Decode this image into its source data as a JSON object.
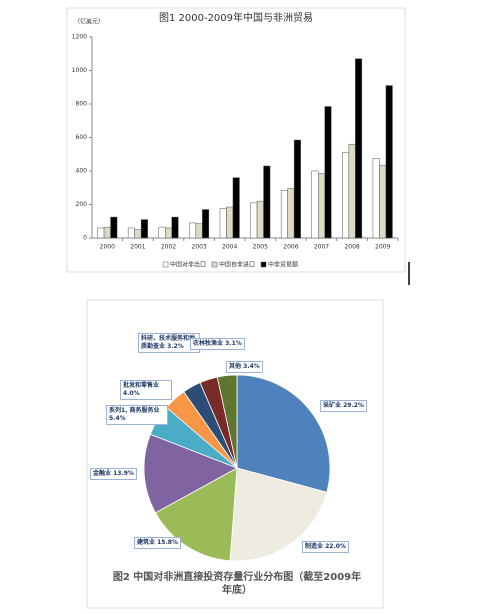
{
  "chart_data": [
    {
      "type": "bar",
      "title": "图1 2000-2009年中国与非洲贸易",
      "y_label": "（亿美元）",
      "categories": [
        "2000",
        "2001",
        "2002",
        "2003",
        "2004",
        "2005",
        "2006",
        "2007",
        "2008",
        "2009"
      ],
      "series": [
        {
          "name": "中国对非出口",
          "color": "#ffffff",
          "values": [
            60,
            60,
            65,
            90,
            175,
            210,
            285,
            400,
            510,
            475
          ]
        },
        {
          "name": "中国自非进口",
          "color": "#ddd9c3",
          "values": [
            65,
            50,
            60,
            85,
            185,
            220,
            295,
            385,
            560,
            435
          ]
        },
        {
          "name": "中非贸易额",
          "color": "#000000",
          "values": [
            125,
            110,
            125,
            170,
            360,
            430,
            585,
            785,
            1070,
            910
          ]
        }
      ],
      "ylim": [
        0,
        1200
      ],
      "yticks": [
        0,
        200,
        400,
        600,
        800,
        1000,
        1200
      ],
      "legend": "bottom"
    },
    {
      "type": "pie",
      "title": "图2 中国对非洲直接投资存量行业分布图（截至2009年年底）",
      "categories": [
        "采矿业",
        "制造业",
        "建筑业",
        "金融业",
        "系列1, 商务服务业",
        "批发和零售业",
        "科研、技术服务和地质勘查业",
        "农林牧渔业",
        "其他"
      ],
      "values": [
        29.2,
        22.0,
        15.8,
        13.9,
        5.4,
        4.0,
        3.2,
        3.1,
        3.4
      ],
      "value_labels": [
        "29.2%",
        "22.0%",
        "15.8%",
        "13.9%",
        "5.4%",
        "4.0%",
        "3.2%",
        "3.1%",
        "3.4%"
      ],
      "colors": [
        "#4f81bd",
        "#eeece1",
        "#9bbb59",
        "#8064a2",
        "#4bacc6",
        "#f79646",
        "#2c4d75",
        "#772c2a",
        "#5f7530"
      ]
    }
  ]
}
